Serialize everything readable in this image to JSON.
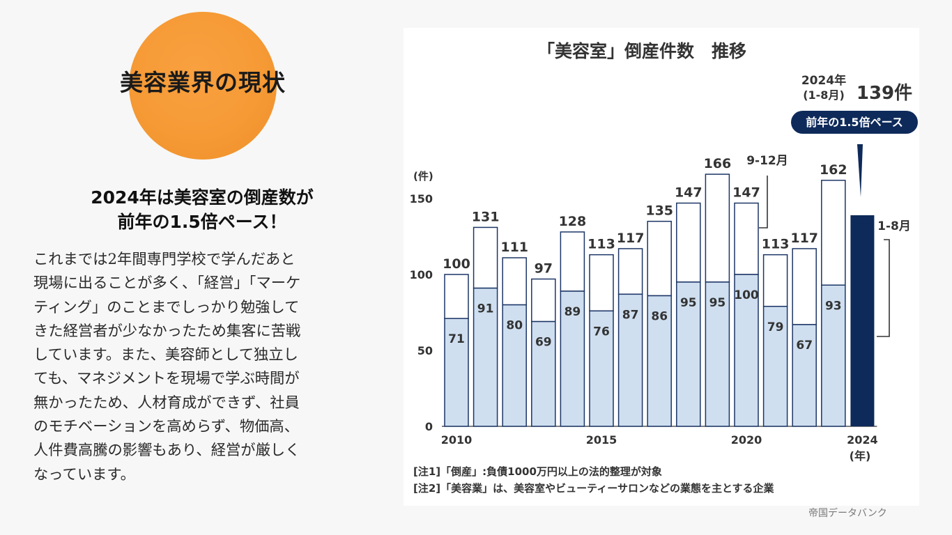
{
  "slide": {
    "circle_title": "美容業界の現状",
    "headline_lines": [
      "2024年は美容室の倒産数が",
      "前年の1.5倍ペース！"
    ],
    "body_lines": [
      "これまでは2年間専門学校で学んだあと",
      "現場に出ることが多く、「経営」「マーケ",
      "ティング」のことまでしっかり勉強して",
      "きた経営者が少なかったため集客に苦戦",
      "しています。また、美容師として独立し",
      "ても、マネジメントを現場で学ぶ時間が",
      "無かったため、人材育成ができず、社員",
      "のモチベーションを高めらず、物価高、",
      "人件費高騰の影響もあり、経営が厳しく",
      "なっています。"
    ],
    "source": "帝国データバンク",
    "colors": {
      "accent_orange": "#f59a35",
      "navy": "#0e2a5a",
      "light_blue": "#cfdff0",
      "white": "#ffffff"
    }
  },
  "chart_data": {
    "type": "bar",
    "title": "「美容室」倒産件数　推移",
    "ylabel": "(件)",
    "ylim": [
      0,
      166
    ],
    "yticks": [
      0,
      50,
      100,
      150
    ],
    "xtick_labels": [
      {
        "label": "2010",
        "at": "2010"
      },
      {
        "label": "2015",
        "at": "2015"
      },
      {
        "label": "2020",
        "at": "2020"
      },
      {
        "label": "2024",
        "at": "2024"
      }
    ],
    "x_unit": "(年)",
    "years": [
      "2010",
      "2011",
      "2012",
      "2013",
      "2014",
      "2015",
      "2016",
      "2017",
      "2018",
      "2019",
      "2020",
      "2021",
      "2022",
      "2023",
      "2024"
    ],
    "series": [
      {
        "values": [
          71,
          91,
          80,
          69,
          89,
          76,
          87,
          86,
          95,
          95,
          100,
          79,
          67,
          93,
          139
        ]
      },
      {
        "values": [
          29,
          40,
          31,
          28,
          39,
          37,
          30,
          49,
          52,
          71,
          47,
          34,
          50,
          69,
          0
        ]
      }
    ],
    "totals": [
      100,
      131,
      111,
      97,
      128,
      113,
      117,
      135,
      147,
      166,
      147,
      113,
      117,
      162,
      139
    ],
    "inner_labels": [
      71,
      91,
      80,
      69,
      89,
      76,
      87,
      86,
      95,
      95,
      100,
      79,
      67,
      93
    ],
    "annotations": {
      "period_label_9_12": "9-12月",
      "period_label_1_8": "1-8月",
      "callout_year": "2024年",
      "callout_period": "(1-8月)",
      "callout_value": "139件",
      "callout_badge": "前年の1.5倍ペース"
    },
    "notes": [
      "[注1]「倒産」:負債1000万円以上の法的整理が対象",
      "[注2]「美容業」は、美容室やビューティーサロンなどの業態を主とする企業"
    ]
  }
}
